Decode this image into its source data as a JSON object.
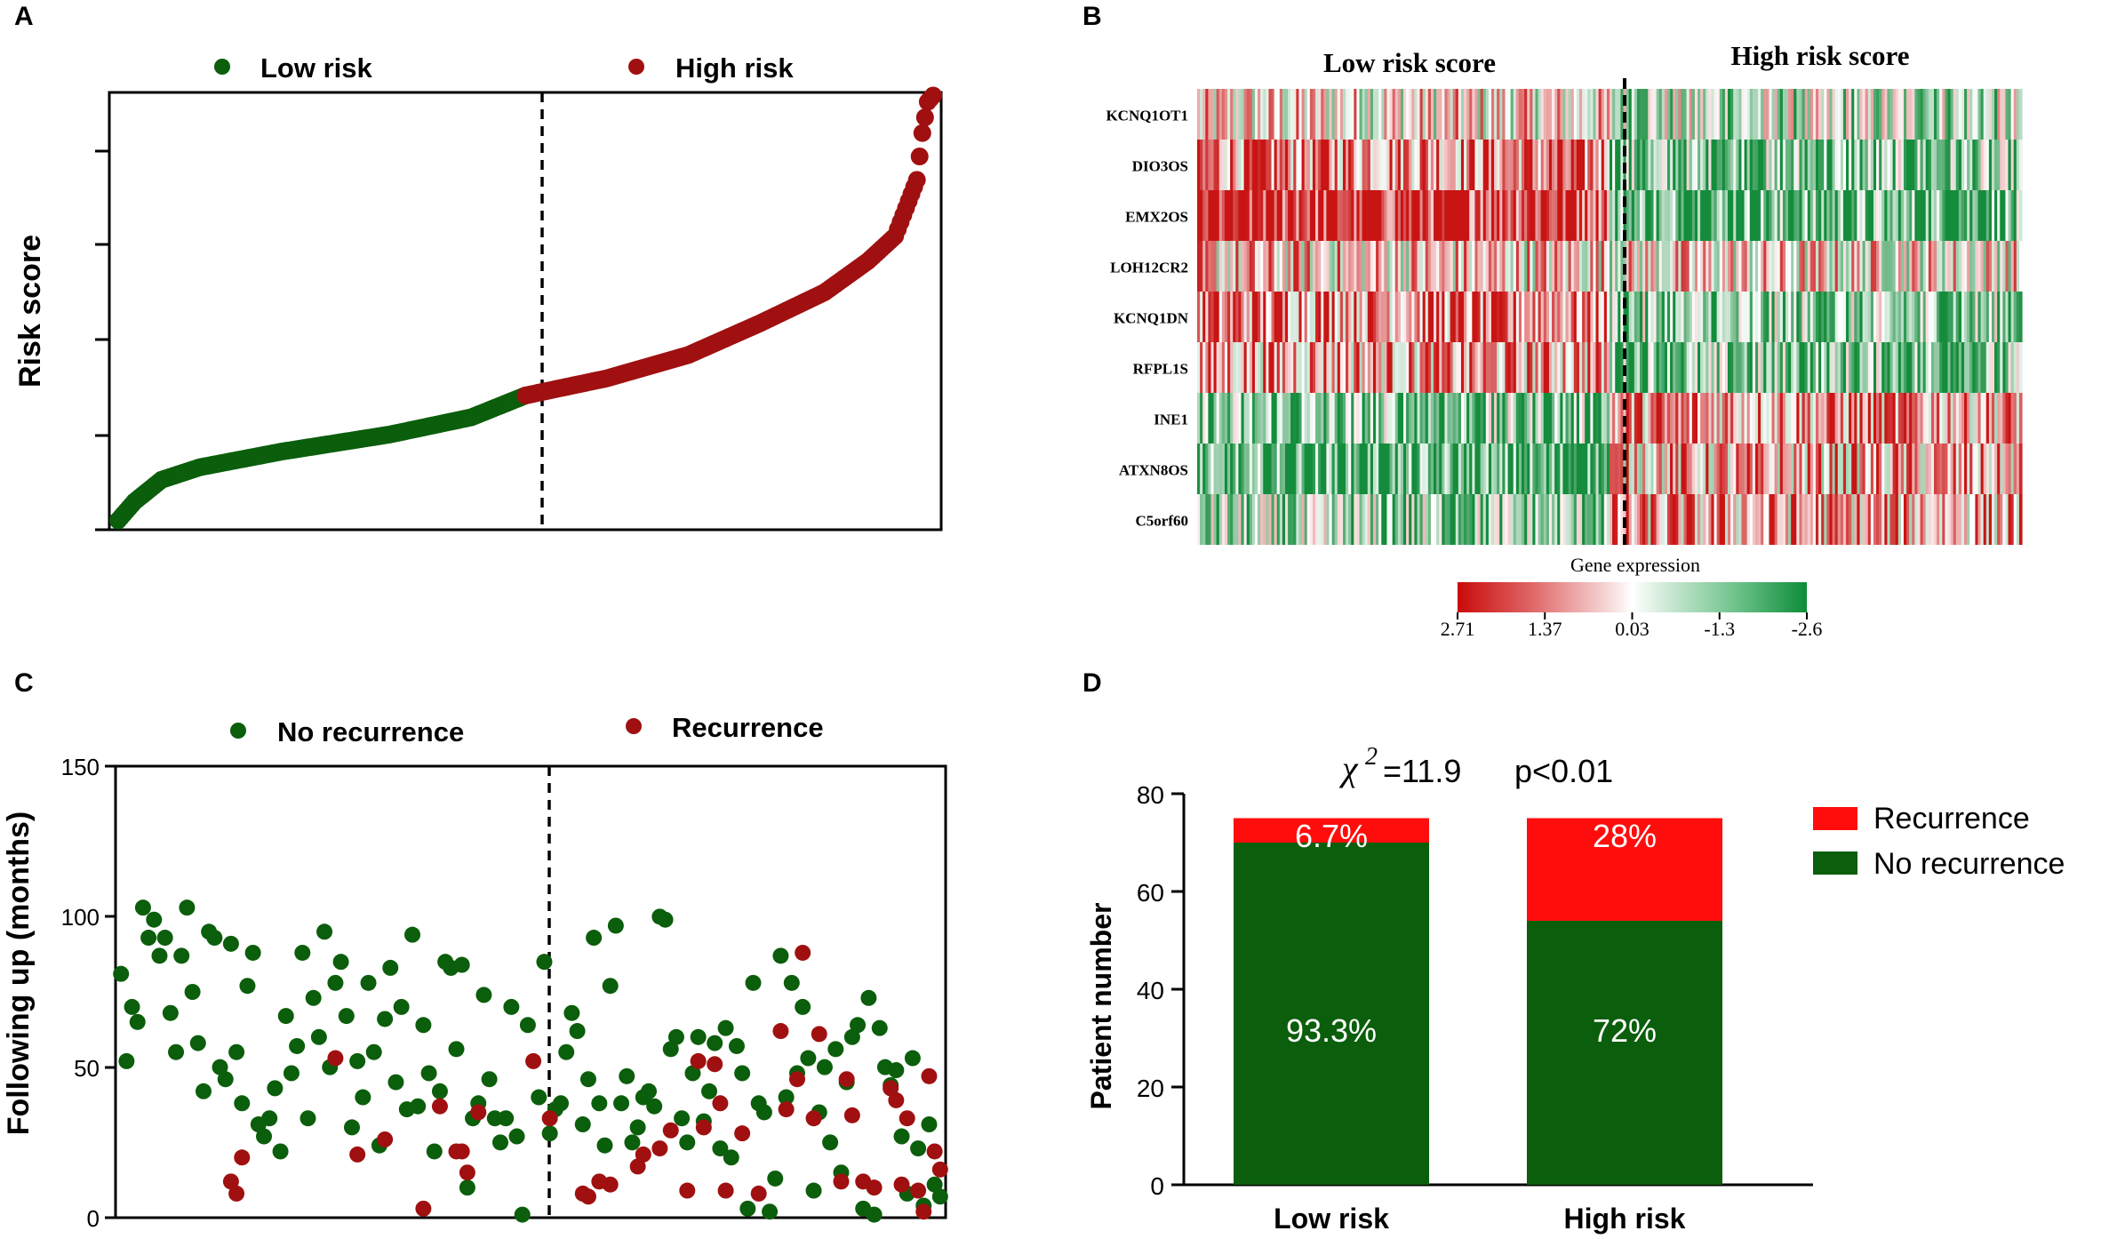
{
  "colors": {
    "green": "#0b5e0b",
    "darkred": "#a01010",
    "red": "#ff0d0d",
    "heat_red": "#cc1b1b",
    "heat_green": "#1f9a4a",
    "axis": "#000000"
  },
  "chart_data": [
    {
      "panel": "A",
      "type": "scatter",
      "ylabel": "Risk score",
      "xlabel": "",
      "yticks_labeled": false,
      "legend": [
        {
          "name": "Low risk",
          "color": "#0b5e0b"
        },
        {
          "name": "High risk",
          "color": "#a01010"
        }
      ],
      "n_patients": 150,
      "split_index": 75,
      "series": [
        {
          "name": "Low risk",
          "curve": [
            [
              0,
              0.3
            ],
            [
              3,
              0.9
            ],
            [
              8,
              1.6
            ],
            [
              15,
              2.0
            ],
            [
              30,
              2.5
            ],
            [
              50,
              3.05
            ],
            [
              65,
              3.6
            ],
            [
              75,
              4.3
            ]
          ]
        },
        {
          "name": "High risk",
          "curve": [
            [
              75,
              4.3
            ],
            [
              90,
              4.85
            ],
            [
              105,
              5.6
            ],
            [
              118,
              6.6
            ],
            [
              130,
              7.6
            ],
            [
              138,
              8.6
            ],
            [
              143,
              9.4
            ],
            [
              145,
              10.3
            ],
            [
              147,
              11.2
            ],
            [
              148,
              12.7
            ],
            [
              149,
              13.7
            ],
            [
              150,
              13.9
            ]
          ]
        }
      ],
      "ylim": [
        0,
        14
      ]
    },
    {
      "panel": "B",
      "type": "heatmap",
      "title_left": "Low risk score",
      "title_right": "High risk score",
      "genes": [
        "KCNQ1OT1",
        "DIO3OS",
        "EMX2OS",
        "LOH12CR2",
        "KCNQ1DN",
        "RFPL1S",
        "INE1",
        "ATXN8OS",
        "C5orf60"
      ],
      "gene_bias_low": [
        0.1,
        0.55,
        0.95,
        0.2,
        0.55,
        0.4,
        -0.55,
        -0.8,
        -0.45
      ],
      "gene_bias_high": [
        -0.25,
        -0.55,
        -0.65,
        0.1,
        -0.5,
        -0.55,
        0.45,
        0.3,
        0.35
      ],
      "n_columns": 300,
      "split_column": 150,
      "colorbar_title": "Gene expression",
      "colorbar_ticks": [
        "2.71",
        "1.37",
        "0.03",
        "-1.3",
        "-2.6"
      ]
    },
    {
      "panel": "C",
      "type": "scatter",
      "ylabel": "Following up (months)",
      "legend": [
        {
          "name": "No recurrence",
          "color": "#0b5e0b"
        },
        {
          "name": "Recurrence",
          "color": "#a01010"
        }
      ],
      "ylim": [
        0,
        150
      ],
      "yticks": [
        0,
        50,
        100,
        150
      ],
      "n_patients": 150,
      "split_index": 75,
      "no_recurrence_points": [
        [
          1,
          81
        ],
        [
          2,
          52
        ],
        [
          3,
          70
        ],
        [
          4,
          65
        ],
        [
          5,
          103
        ],
        [
          6,
          93
        ],
        [
          7,
          99
        ],
        [
          8,
          87
        ],
        [
          9,
          93
        ],
        [
          10,
          68
        ],
        [
          11,
          55
        ],
        [
          12,
          87
        ],
        [
          13,
          103
        ],
        [
          14,
          75
        ],
        [
          15,
          58
        ],
        [
          16,
          42
        ],
        [
          17,
          95
        ],
        [
          18,
          93
        ],
        [
          19,
          50
        ],
        [
          20,
          46
        ],
        [
          21,
          91
        ],
        [
          22,
          55
        ],
        [
          23,
          38
        ],
        [
          24,
          77
        ],
        [
          25,
          88
        ],
        [
          26,
          31
        ],
        [
          27,
          27
        ],
        [
          28,
          33
        ],
        [
          29,
          43
        ],
        [
          30,
          22
        ],
        [
          31,
          67
        ],
        [
          32,
          48
        ],
        [
          33,
          57
        ],
        [
          34,
          88
        ],
        [
          35,
          33
        ],
        [
          36,
          73
        ],
        [
          37,
          60
        ],
        [
          38,
          95
        ],
        [
          39,
          50
        ],
        [
          40,
          78
        ],
        [
          41,
          85
        ],
        [
          42,
          67
        ],
        [
          43,
          30
        ],
        [
          44,
          52
        ],
        [
          45,
          40
        ],
        [
          46,
          78
        ],
        [
          47,
          55
        ],
        [
          48,
          24
        ],
        [
          49,
          66
        ],
        [
          50,
          83
        ],
        [
          51,
          45
        ],
        [
          52,
          70
        ],
        [
          53,
          36
        ],
        [
          54,
          94
        ],
        [
          55,
          37
        ],
        [
          56,
          64
        ],
        [
          57,
          48
        ],
        [
          58,
          22
        ],
        [
          59,
          42
        ],
        [
          60,
          85
        ],
        [
          61,
          83
        ],
        [
          62,
          56
        ],
        [
          63,
          84
        ],
        [
          64,
          10
        ],
        [
          65,
          33
        ],
        [
          66,
          38
        ],
        [
          67,
          74
        ],
        [
          68,
          46
        ],
        [
          69,
          33
        ],
        [
          70,
          25
        ],
        [
          71,
          33
        ],
        [
          72,
          70
        ],
        [
          73,
          27
        ],
        [
          74,
          1
        ],
        [
          75,
          64
        ],
        [
          77,
          40
        ],
        [
          78,
          85
        ],
        [
          79,
          28
        ],
        [
          80,
          36
        ],
        [
          81,
          38
        ],
        [
          82,
          55
        ],
        [
          83,
          68
        ],
        [
          84,
          62
        ],
        [
          85,
          31
        ],
        [
          86,
          46
        ],
        [
          87,
          93
        ],
        [
          88,
          38
        ],
        [
          89,
          24
        ],
        [
          90,
          77
        ],
        [
          91,
          97
        ],
        [
          92,
          38
        ],
        [
          93,
          47
        ],
        [
          94,
          25
        ],
        [
          95,
          30
        ],
        [
          96,
          40
        ],
        [
          97,
          42
        ],
        [
          98,
          37
        ],
        [
          99,
          100
        ],
        [
          100,
          99
        ],
        [
          101,
          56
        ],
        [
          102,
          60
        ],
        [
          103,
          33
        ],
        [
          104,
          25
        ],
        [
          105,
          48
        ],
        [
          106,
          60
        ],
        [
          107,
          32
        ],
        [
          108,
          42
        ],
        [
          109,
          58
        ],
        [
          110,
          23
        ],
        [
          111,
          63
        ],
        [
          112,
          20
        ],
        [
          113,
          57
        ],
        [
          114,
          48
        ],
        [
          115,
          3
        ],
        [
          116,
          78
        ],
        [
          117,
          38
        ],
        [
          118,
          35
        ],
        [
          119,
          2
        ],
        [
          120,
          13
        ],
        [
          121,
          87
        ],
        [
          122,
          40
        ],
        [
          123,
          78
        ],
        [
          124,
          48
        ],
        [
          125,
          70
        ],
        [
          126,
          53
        ],
        [
          127,
          9
        ],
        [
          128,
          35
        ],
        [
          129,
          50
        ],
        [
          130,
          25
        ],
        [
          131,
          56
        ],
        [
          132,
          15
        ],
        [
          133,
          45
        ],
        [
          134,
          60
        ],
        [
          135,
          64
        ],
        [
          136,
          3
        ],
        [
          137,
          73
        ],
        [
          138,
          1
        ],
        [
          139,
          63
        ],
        [
          140,
          50
        ],
        [
          141,
          44
        ],
        [
          142,
          49
        ],
        [
          143,
          27
        ],
        [
          144,
          8
        ],
        [
          145,
          53
        ],
        [
          146,
          23
        ],
        [
          147,
          4
        ],
        [
          148,
          31
        ],
        [
          149,
          11
        ],
        [
          150,
          7
        ]
      ],
      "recurrence_points": [
        [
          21,
          12
        ],
        [
          22,
          8
        ],
        [
          23,
          20
        ],
        [
          40,
          53
        ],
        [
          44,
          21
        ],
        [
          49,
          26
        ],
        [
          56,
          3
        ],
        [
          59,
          37
        ],
        [
          62,
          22
        ],
        [
          63,
          22
        ],
        [
          64,
          15
        ],
        [
          66,
          35
        ],
        [
          76,
          52
        ],
        [
          79,
          33
        ],
        [
          85,
          8
        ],
        [
          86,
          7
        ],
        [
          88,
          12
        ],
        [
          90,
          11
        ],
        [
          95,
          17
        ],
        [
          96,
          21
        ],
        [
          99,
          23
        ],
        [
          101,
          29
        ],
        [
          104,
          9
        ],
        [
          106,
          52
        ],
        [
          107,
          30
        ],
        [
          109,
          51
        ],
        [
          110,
          38
        ],
        [
          111,
          9
        ],
        [
          114,
          28
        ],
        [
          117,
          8
        ],
        [
          121,
          62
        ],
        [
          122,
          36
        ],
        [
          124,
          46
        ],
        [
          125,
          88
        ],
        [
          127,
          33
        ],
        [
          128,
          61
        ],
        [
          132,
          12
        ],
        [
          133,
          46
        ],
        [
          134,
          34
        ],
        [
          136,
          12
        ],
        [
          138,
          10
        ],
        [
          141,
          43
        ],
        [
          142,
          39
        ],
        [
          143,
          11
        ],
        [
          144,
          33
        ],
        [
          146,
          9
        ],
        [
          147,
          2
        ],
        [
          148,
          47
        ],
        [
          149,
          22
        ],
        [
          150,
          16
        ]
      ]
    },
    {
      "panel": "D",
      "type": "bar",
      "stacked": true,
      "annotation_stat": "=11.9",
      "annotation_chi": "χ",
      "annotation_p": "p<0.01",
      "ylabel": "Patient number",
      "ylim": [
        0,
        80
      ],
      "yticks": [
        0,
        20,
        40,
        60,
        80
      ],
      "categories": [
        "Low risk",
        "High risk"
      ],
      "series": [
        {
          "name": "No recurrence",
          "color": "#0b5e0b",
          "values": [
            70,
            54
          ],
          "labels": [
            "93.3%",
            "72%"
          ]
        },
        {
          "name": "Recurrence",
          "color": "#ff0d0d",
          "values": [
            5,
            21
          ],
          "labels": [
            "6.7%",
            "28%"
          ]
        }
      ],
      "legend": [
        "Recurrence",
        "No recurrence"
      ]
    }
  ],
  "panel_labels": {
    "a": "A",
    "b": "B",
    "c": "C",
    "d": "D"
  },
  "legend_a": {
    "low": "Low risk",
    "high": "High risk"
  },
  "legend_c": {
    "no": "No recurrence",
    "yes": "Recurrence"
  },
  "axis_a": {
    "ylabel": "Risk score"
  },
  "axis_c": {
    "ylabel": "Following up (months)",
    "t0": "0",
    "t50": "50",
    "t100": "100",
    "t150": "150"
  },
  "panel_b": {
    "left_title": "Low risk score",
    "right_title": "High risk score",
    "cb_title": "Gene expression"
  },
  "panel_d": {
    "ylabel": "Patient number",
    "leg_rec": "Recurrence",
    "leg_norec": "No recurrence",
    "stat": "=11.9",
    "p": "p<0.01",
    "chi": "χ",
    "sup": "2",
    "t0": "0",
    "t20": "20",
    "t40": "40",
    "t60": "60",
    "t80": "80",
    "cat_low": "Low risk",
    "cat_high": "High risk",
    "low_rec": "6.7%",
    "low_norec": "93.3%",
    "high_rec": "28%",
    "high_norec": "72%"
  }
}
